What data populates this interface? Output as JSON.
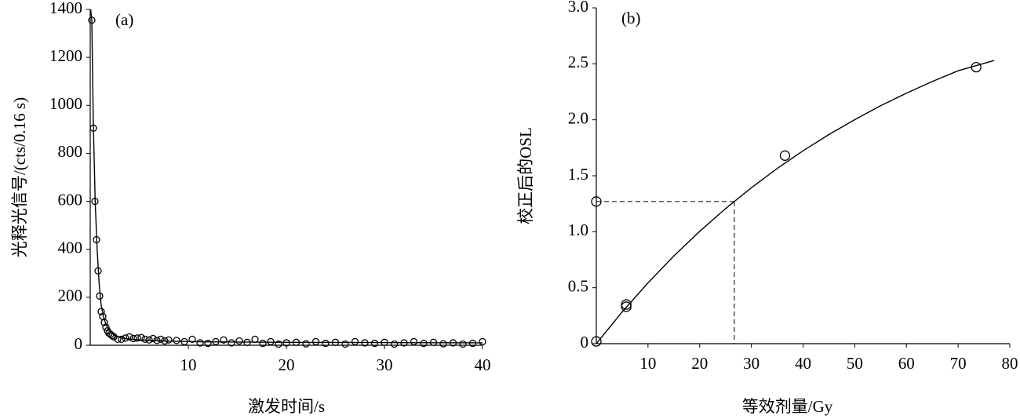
{
  "chart_data": [
    {
      "type": "scatter",
      "annotation": "(a)",
      "x_label": "激发时间/s",
      "y_label": "光释光信号/(cts/0.16 s)",
      "xlim": [
        0,
        40
      ],
      "xticks": [
        10,
        20,
        30,
        40
      ],
      "ylim": [
        0,
        1400
      ],
      "yticks": [
        0,
        200,
        400,
        600,
        800,
        1000,
        1200,
        1400
      ],
      "series": [
        {
          "mode": "markers",
          "color": "#000000",
          "x": [
            0.16,
            0.32,
            0.48,
            0.64,
            0.8,
            0.96,
            1.12,
            1.28,
            1.44,
            1.6,
            1.76,
            1.92,
            2.08,
            2.24,
            2.4,
            2.8,
            3.2,
            3.6,
            4.0,
            4.4,
            4.8,
            5.2,
            5.6,
            6,
            6.4,
            6.8,
            7.2,
            7.6,
            8,
            8.8,
            9.6,
            10.4,
            11.2,
            12,
            12.8,
            13.6,
            14.4,
            15.2,
            16,
            16.8,
            17.6,
            18.4,
            19.2,
            20,
            21,
            22,
            23,
            24,
            25,
            26,
            27,
            28,
            29,
            30,
            31,
            32,
            33,
            34,
            35,
            36,
            37,
            38,
            39,
            40
          ],
          "values": [
            1355,
            905,
            600,
            440,
            310,
            205,
            140,
            120,
            95,
            75,
            60,
            50,
            45,
            40,
            35,
            25,
            25,
            30,
            35,
            28,
            30,
            32,
            25,
            22,
            28,
            20,
            25,
            18,
            22,
            20,
            15,
            25,
            10,
            8,
            15,
            22,
            10,
            18,
            12,
            25,
            8,
            15,
            5,
            10,
            12,
            6,
            15,
            8,
            12,
            5,
            15,
            10,
            8,
            12,
            5,
            10,
            15,
            8,
            12,
            6,
            10,
            5,
            8,
            15
          ]
        },
        {
          "mode": "line",
          "color": "#000000",
          "x": [
            0.05,
            0.16,
            0.3,
            0.5,
            0.7,
            0.9,
            1.1,
            1.4,
            1.8,
            2.5,
            3.5,
            5,
            8,
            12,
            20,
            30,
            40
          ],
          "values": [
            1400,
            1355,
            950,
            600,
            400,
            260,
            170,
            110,
            70,
            40,
            28,
            22,
            17,
            14,
            12,
            11,
            10
          ]
        }
      ]
    },
    {
      "type": "scatter",
      "annotation": "(b)",
      "x_label": "等效剂量/Gy",
      "y_label": "校正后的OSL",
      "xlim": [
        0,
        80
      ],
      "xticks": [
        10,
        20,
        30,
        40,
        50,
        60,
        70,
        80
      ],
      "ylim": [
        0,
        3
      ],
      "yticks": [
        0,
        0.5,
        {
          "value": 1,
          "label": "1.0"
        },
        1.5,
        {
          "value": 2,
          "label": "2.0"
        },
        2.5,
        {
          "value": 3,
          "label": "3.0"
        }
      ],
      "guide": {
        "x": 26.7,
        "y": 1.27
      },
      "series": [
        {
          "mode": "markers",
          "color": "#000000",
          "x": [
            0,
            0,
            5.8,
            5.8,
            36.5,
            73.5
          ],
          "values": [
            0.02,
            1.27,
            0.33,
            0.35,
            1.68,
            2.47
          ]
        },
        {
          "mode": "line",
          "color": "#000000",
          "x": [
            0,
            5,
            10,
            15,
            20,
            25,
            30,
            35,
            40,
            45,
            50,
            55,
            60,
            65,
            70,
            77
          ],
          "values": [
            0,
            0.283,
            0.543,
            0.783,
            1.004,
            1.206,
            1.393,
            1.565,
            1.723,
            1.868,
            2.001,
            2.125,
            2.238,
            2.342,
            2.438,
            2.53
          ]
        }
      ]
    }
  ]
}
